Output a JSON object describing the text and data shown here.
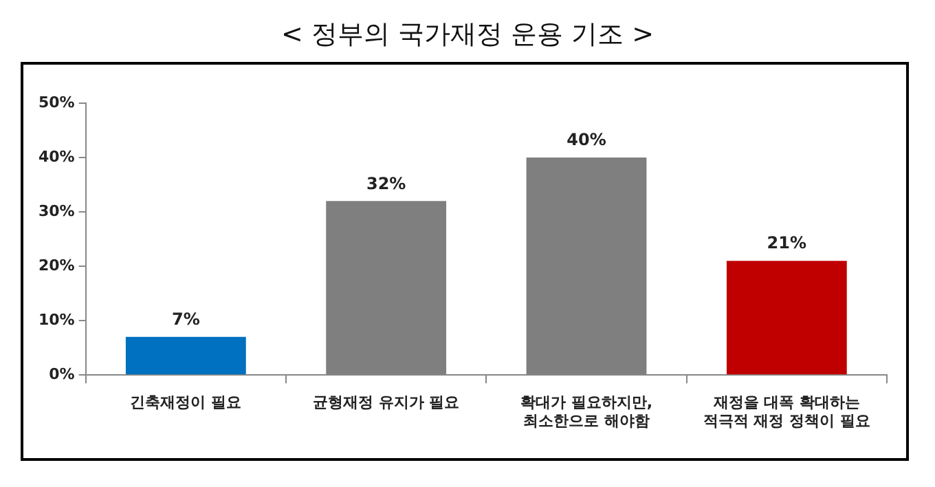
{
  "chart_data": {
    "type": "bar",
    "title": "< 정부의 국가재정 운용 기조 >",
    "categories": [
      "긴축재정이 필요",
      "균형재정 유지가 필요",
      "확대가 필요하지만,\n최소한으로 해야함",
      "재정을 대폭 확대하는\n적극적 재정 정책이 필요"
    ],
    "values": [
      7,
      32,
      40,
      21
    ],
    "colors": [
      "#0070c0",
      "#7f7f7f",
      "#7f7f7f",
      "#c00000"
    ],
    "value_labels": [
      "7%",
      "32%",
      "40%",
      "21%"
    ],
    "ylim": [
      0,
      50
    ],
    "yticks": [
      {
        "value": 0,
        "label": "0%"
      },
      {
        "value": 10,
        "label": "10%"
      },
      {
        "value": 20,
        "label": "20%"
      },
      {
        "value": 30,
        "label": "30%"
      },
      {
        "value": 40,
        "label": "40%"
      },
      {
        "value": 50,
        "label": "50%"
      }
    ],
    "grid": false,
    "legend": false
  }
}
